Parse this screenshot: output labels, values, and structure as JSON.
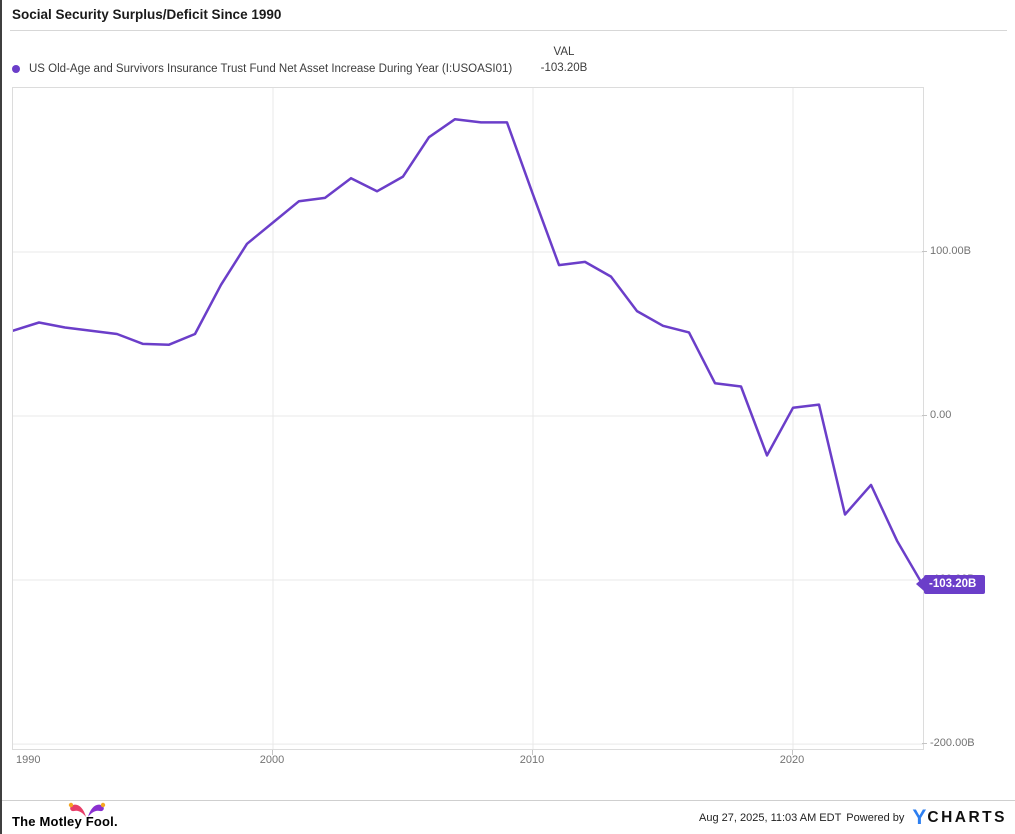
{
  "header": {
    "title": "Social Security Surplus/Deficit Since 1990"
  },
  "legend": {
    "series_label": "US Old-Age and Survivors Insurance Trust Fund Net Asset Increase During Year (I:USOASI01)",
    "val_header": "VAL",
    "val_value": "-103.20B"
  },
  "colors": {
    "accent": "#6b3ec9",
    "ycharts_blue": "#2d7ff0",
    "fool_pink": "#e83e68",
    "fool_purple": "#8a30d0",
    "fool_gold": "#f5a623",
    "gridline": "#e9e9e9",
    "axis_label": "#737373"
  },
  "chart_data": {
    "type": "line",
    "title": "Social Security Surplus/Deficit Since 1990",
    "series_name": "US Old-Age and Survivors Insurance Trust Fund Net Asset Increase During Year (I:USOASI01)",
    "x": [
      1990,
      1991,
      1992,
      1993,
      1994,
      1995,
      1996,
      1997,
      1998,
      1999,
      2000,
      2001,
      2002,
      2003,
      2004,
      2005,
      2006,
      2007,
      2008,
      2009,
      2010,
      2011,
      2012,
      2013,
      2014,
      2015,
      2016,
      2017,
      2018,
      2019,
      2020,
      2021,
      2022,
      2023,
      2024,
      2025
    ],
    "values": [
      52,
      57,
      54,
      52,
      50,
      44,
      43.5,
      50,
      80,
      105,
      118,
      131,
      133,
      145,
      137,
      146,
      170,
      181,
      179,
      179,
      135,
      92,
      94,
      85,
      64,
      55,
      51,
      20,
      18,
      -24,
      5,
      7,
      -60,
      -42,
      -76,
      -103.2
    ],
    "units": "billions USD",
    "xlim": [
      1990,
      2025
    ],
    "ylim": [
      -203,
      200
    ],
    "yticks": [
      {
        "value": 100,
        "label": "100.00B"
      },
      {
        "value": 0,
        "label": "0.00"
      },
      {
        "value": -100,
        "label": "-100.00B"
      },
      {
        "value": -200,
        "label": "-200.00B"
      }
    ],
    "xticks": [
      {
        "value": 1990,
        "label": "1990"
      },
      {
        "value": 2000,
        "label": "2000"
      },
      {
        "value": 2010,
        "label": "2010"
      },
      {
        "value": 2020,
        "label": "2020"
      }
    ],
    "grid": true,
    "legend_position": "top-left",
    "line_color": "#6b3ec9",
    "last_value": -103.2,
    "last_value_label": "-103.20B"
  },
  "footer": {
    "brand": "The Motley Fool.",
    "timestamp": "Aug 27, 2025, 11:03 AM EDT",
    "powered_by": "Powered by",
    "ycharts_y": "Y",
    "ycharts_rest": "CHARTS"
  }
}
